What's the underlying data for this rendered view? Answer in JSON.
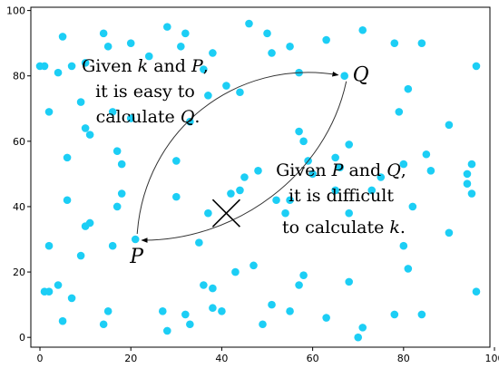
{
  "chart_data": {
    "type": "scatter",
    "xlim": [
      -2,
      99
    ],
    "ylim": [
      -3,
      101
    ],
    "x_ticks": [
      0,
      20,
      40,
      60,
      80,
      100
    ],
    "y_ticks": [
      0,
      20,
      40,
      60,
      80,
      100
    ],
    "grid": false,
    "point_color": "#1ccef5",
    "points": [
      [
        0,
        83
      ],
      [
        1,
        83
      ],
      [
        5,
        92
      ],
      [
        10,
        84
      ],
      [
        14,
        93
      ],
      [
        15,
        89
      ],
      [
        20,
        90
      ],
      [
        24,
        86
      ],
      [
        28,
        95
      ],
      [
        32,
        93
      ],
      [
        31,
        89
      ],
      [
        36,
        82
      ],
      [
        38,
        87
      ],
      [
        44,
        75
      ],
      [
        46,
        96
      ],
      [
        50,
        93
      ],
      [
        51,
        87
      ],
      [
        55,
        89
      ],
      [
        57,
        81
      ],
      [
        63,
        91
      ],
      [
        71,
        94
      ],
      [
        78,
        90
      ],
      [
        84,
        90
      ],
      [
        96,
        83
      ],
      [
        7,
        83
      ],
      [
        4,
        81
      ],
      [
        2,
        69
      ],
      [
        6,
        55
      ],
      [
        9,
        72
      ],
      [
        10,
        64
      ],
      [
        11,
        62
      ],
      [
        16,
        69
      ],
      [
        17,
        57
      ],
      [
        18,
        53
      ],
      [
        20,
        67
      ],
      [
        30,
        54
      ],
      [
        33,
        66
      ],
      [
        37,
        74
      ],
      [
        41,
        77
      ],
      [
        57,
        63
      ],
      [
        58,
        60
      ],
      [
        59,
        54
      ],
      [
        65,
        55
      ],
      [
        68,
        59
      ],
      [
        79,
        69
      ],
      [
        81,
        76
      ],
      [
        90,
        65
      ],
      [
        6,
        42
      ],
      [
        10,
        34
      ],
      [
        11,
        35
      ],
      [
        16,
        28
      ],
      [
        17,
        40
      ],
      [
        18,
        44
      ],
      [
        30,
        43
      ],
      [
        37,
        38
      ],
      [
        42,
        44
      ],
      [
        44,
        45
      ],
      [
        45,
        49
      ],
      [
        48,
        51
      ],
      [
        52,
        42
      ],
      [
        54,
        38
      ],
      [
        55,
        42
      ],
      [
        60,
        50
      ],
      [
        65,
        45
      ],
      [
        66,
        52
      ],
      [
        68,
        38
      ],
      [
        73,
        45
      ],
      [
        75,
        49
      ],
      [
        80,
        53
      ],
      [
        82,
        40
      ],
      [
        85,
        56
      ],
      [
        86,
        51
      ],
      [
        90,
        32
      ],
      [
        94,
        50
      ],
      [
        94,
        47
      ],
      [
        95,
        53
      ],
      [
        95,
        44
      ],
      [
        80,
        28
      ],
      [
        9,
        25
      ],
      [
        2,
        28
      ],
      [
        1,
        14
      ],
      [
        2,
        14
      ],
      [
        4,
        16
      ],
      [
        5,
        5
      ],
      [
        7,
        12
      ],
      [
        14,
        4
      ],
      [
        15,
        8
      ],
      [
        27,
        8
      ],
      [
        28,
        2
      ],
      [
        32,
        7
      ],
      [
        33,
        4
      ],
      [
        35,
        29
      ],
      [
        36,
        16
      ],
      [
        38,
        15
      ],
      [
        38,
        9
      ],
      [
        40,
        8
      ],
      [
        43,
        20
      ],
      [
        47,
        22
      ],
      [
        49,
        4
      ],
      [
        51,
        10
      ],
      [
        55,
        8
      ],
      [
        57,
        16
      ],
      [
        58,
        19
      ],
      [
        63,
        6
      ],
      [
        68,
        17
      ],
      [
        70,
        0
      ],
      [
        71,
        3
      ],
      [
        78,
        7
      ],
      [
        84,
        7
      ],
      [
        81,
        21
      ],
      [
        96,
        14
      ]
    ],
    "labeled_points": [
      {
        "name": "P",
        "x": 21,
        "y": 30
      },
      {
        "name": "Q",
        "x": 67,
        "y": 80
      }
    ],
    "cross_marker": {
      "x": 41,
      "y": 38
    },
    "annotations": {
      "top_left": {
        "line1": [
          "Given ",
          "k",
          " and ",
          "P",
          ","
        ],
        "line2": "it is easy to",
        "line3": [
          "calculate ",
          "Q",
          "."
        ]
      },
      "bottom_right": {
        "line1": [
          "Given ",
          "P",
          " and ",
          "Q",
          ","
        ],
        "line2": "it is difficult",
        "line3": [
          "to calculate ",
          "k",
          "."
        ]
      }
    }
  }
}
